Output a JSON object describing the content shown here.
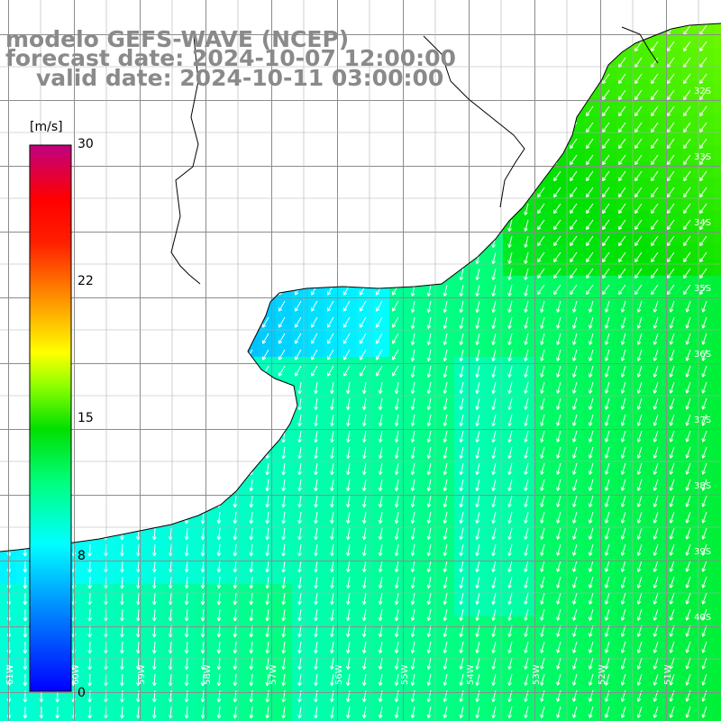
{
  "title": {
    "model": "modelo GEFS-WAVE (NCEP)",
    "forecast": "forecast date: 2024-10-07 12:00:00",
    "valid": "valid date: 2024-10-11 03:00:00"
  },
  "colorbar": {
    "unit": "[m/s]",
    "ticks": [
      "0",
      "8",
      "15",
      "22",
      "30"
    ],
    "tick_values": [
      0,
      8,
      15,
      22,
      30
    ],
    "range": [
      0,
      30
    ],
    "colors": [
      "#0000ff",
      "#0090ff",
      "#00ffff",
      "#00ff60",
      "#00d000",
      "#80ff00",
      "#ffff00",
      "#ffa000",
      "#ff3000",
      "#ff0000",
      "#d00040",
      "#c00080"
    ]
  },
  "grid": {
    "lat_labels": [
      "32S",
      "33S",
      "34S",
      "35S",
      "36S",
      "37S",
      "38S",
      "39S",
      "40S"
    ],
    "lon_labels": [
      "61W",
      "60W",
      "59W",
      "58W",
      "57W",
      "56W",
      "55W",
      "54W",
      "53W",
      "52W",
      "51W"
    ]
  },
  "map": {
    "variable": "wind speed and direction",
    "region": "Rio de la Plata / Uruguay / Buenos Aires coast",
    "land_color": "#ffffff",
    "coast_color": "#000000"
  }
}
